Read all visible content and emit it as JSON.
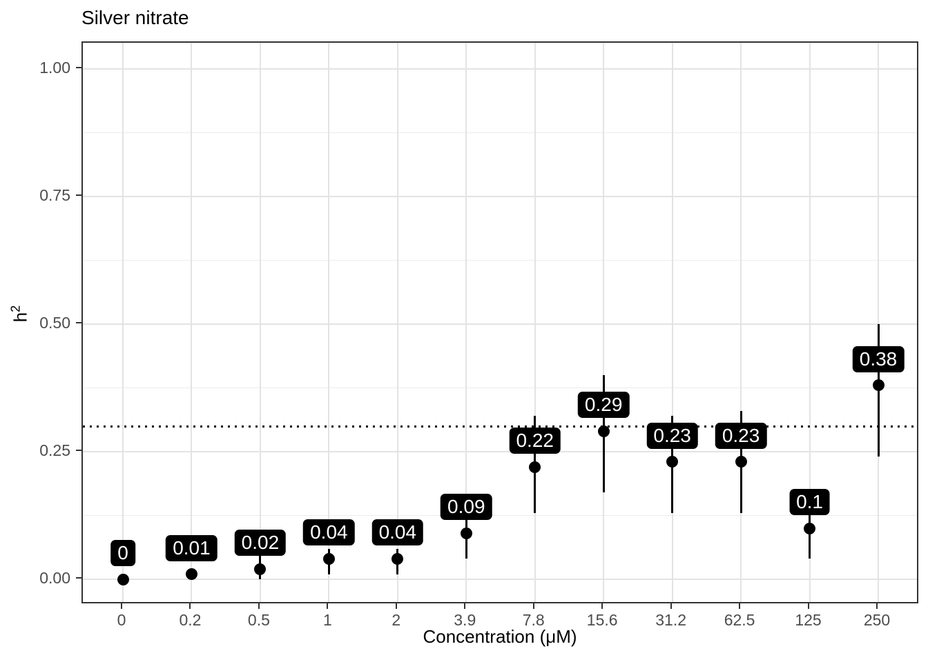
{
  "chart_data": {
    "type": "scatter",
    "title": "Silver nitrate",
    "xlabel": "Concentration (μM)",
    "ylabel": "h²",
    "ylabel_base": "h",
    "ylabel_sup": "2",
    "x_categories": [
      "0",
      "0.2",
      "0.5",
      "1",
      "2",
      "3.9",
      "7.8",
      "15.6",
      "31.2",
      "62.5",
      "125",
      "250"
    ],
    "y_ticks": [
      "0.00",
      "0.25",
      "0.50",
      "0.75",
      "1.00"
    ],
    "y_tick_values": [
      0,
      0.25,
      0.5,
      0.75,
      1
    ],
    "y_minor_values": [
      0.125,
      0.375,
      0.625,
      0.875
    ],
    "ylim": [
      -0.05,
      1.05
    ],
    "grid": "on",
    "legend": "none",
    "reference_line_y": 0.3,
    "reference_line_style": "dotted",
    "points": [
      {
        "x": "0",
        "label": "0",
        "value": 0.0,
        "ymin": null,
        "ymax": null
      },
      {
        "x": "0.2",
        "label": "0.01",
        "value": 0.01,
        "ymin": null,
        "ymax": null
      },
      {
        "x": "0.5",
        "label": "0.02",
        "value": 0.02,
        "ymin": 0.0,
        "ymax": 0.05
      },
      {
        "x": "1",
        "label": "0.04",
        "value": 0.04,
        "ymin": 0.01,
        "ymax": 0.06
      },
      {
        "x": "2",
        "label": "0.04",
        "value": 0.04,
        "ymin": 0.01,
        "ymax": 0.06
      },
      {
        "x": "3.9",
        "label": "0.09",
        "value": 0.09,
        "ymin": 0.04,
        "ymax": 0.14
      },
      {
        "x": "7.8",
        "label": "0.22",
        "value": 0.22,
        "ymin": 0.13,
        "ymax": 0.32
      },
      {
        "x": "15.6",
        "label": "0.29",
        "value": 0.29,
        "ymin": 0.17,
        "ymax": 0.4
      },
      {
        "x": "31.2",
        "label": "0.23",
        "value": 0.23,
        "ymin": 0.13,
        "ymax": 0.32
      },
      {
        "x": "62.5",
        "label": "0.23",
        "value": 0.23,
        "ymin": 0.13,
        "ymax": 0.33
      },
      {
        "x": "125",
        "label": "0.1",
        "value": 0.1,
        "ymin": 0.04,
        "ymax": 0.16
      },
      {
        "x": "250",
        "label": "0.38",
        "value": 0.38,
        "ymin": 0.24,
        "ymax": 0.5
      }
    ],
    "colors": {
      "background": "#ffffff",
      "panel_border": "#333333",
      "grid_major": "#e3e3e3",
      "grid_minor": "#ececec",
      "tick_label": "#4d4d4d",
      "point": "#000000",
      "error_bar": "#000000",
      "value_label_bg": "#000000",
      "value_label_text": "#ffffff",
      "reference_line": "#000000"
    }
  }
}
